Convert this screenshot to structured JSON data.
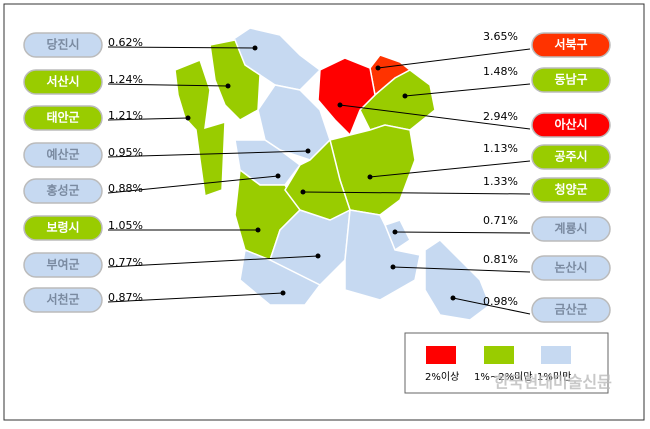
{
  "regions": [
    {
      "name": "당진시",
      "value": "0.62%",
      "color": "#c6d9f1"
    },
    {
      "name": "서산시",
      "value": "1.24%",
      "color": "#99cc00"
    },
    {
      "name": "태안군",
      "value": "1.21%",
      "color": "#99cc00"
    },
    {
      "name": "예산군",
      "value": "0.95%",
      "color": "#c6d9f1"
    },
    {
      "name": "홍성군",
      "value": "0.88%",
      "color": "#c6d9f1"
    },
    {
      "name": "보령시",
      "value": "1.05%",
      "color": "#99cc00"
    },
    {
      "name": "부여군",
      "value": "0.77%",
      "color": "#c6d9f1"
    },
    {
      "name": "서천군",
      "value": "0.87%",
      "color": "#c6d9f1"
    },
    {
      "name": "서북구",
      "value": "3.65%",
      "color": "#ff3300"
    },
    {
      "name": "동남구",
      "value": "1.48%",
      "color": "#99cc00"
    },
    {
      "name": "아산시",
      "value": "2.94%",
      "color": "#ff0000"
    },
    {
      "name": "공주시",
      "value": "1.13%",
      "color": "#99cc00"
    },
    {
      "name": "청양군",
      "value": "1.33%",
      "color": "#99cc00"
    },
    {
      "name": "계룡시",
      "value": "0.71%",
      "color": "#c6d9f1"
    },
    {
      "name": "논산시",
      "value": "0.81%",
      "color": "#c6d9f1"
    },
    {
      "name": "금산군",
      "value": "0.98%",
      "color": "#c6d9f1"
    }
  ],
  "legend": [
    {
      "label": "2%이상",
      "color": "#ff0000"
    },
    {
      "label": "1%~2%미만",
      "color": "#99cc00"
    },
    {
      "label": "1%미만",
      "color": "#c6d9f1"
    }
  ],
  "watermark": "한국현대미술신문"
}
